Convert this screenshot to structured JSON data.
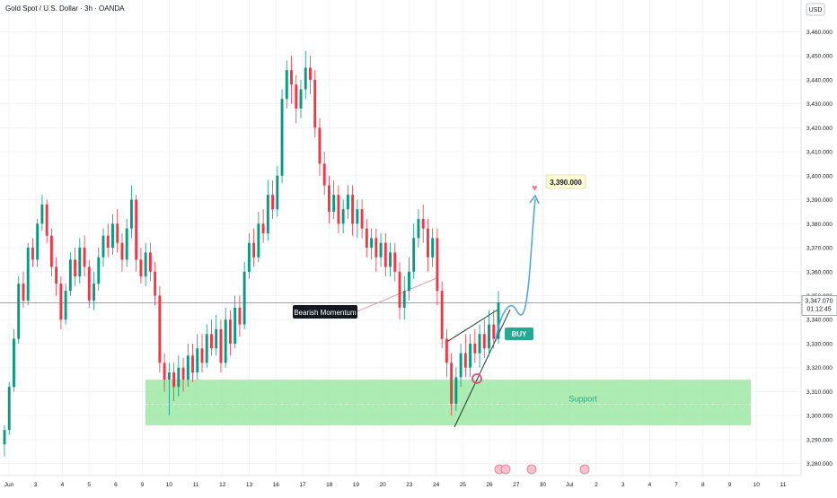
{
  "header": {
    "title": "Gold Spot / U.S. Dollar · 3h · OANDA"
  },
  "scale": {
    "currency": "USD"
  },
  "price": {
    "current": "3,347.070",
    "countdown": "01:12:45"
  },
  "annotations": {
    "bearish": "Bearish Momentum",
    "buy": "BUY",
    "target": "3,390.000",
    "support": "Support"
  },
  "colors": {
    "up": "#089981",
    "down": "#f23645",
    "support": "#9ee8a3",
    "arrow": "#5aa5e6",
    "target_bg": "#fffcd1",
    "buy": "#22ab94"
  },
  "chart_data": {
    "type": "candlestick",
    "yticks": [
      3280,
      3290,
      3300,
      3310,
      3320,
      3330,
      3340,
      3350,
      3360,
      3370,
      3380,
      3390,
      3400,
      3410,
      3420,
      3430,
      3440,
      3450,
      3460
    ],
    "ytick_labels": [
      "3,280.000",
      "3,290.000",
      "3,300.000",
      "3,310.000",
      "3,320.000",
      "3,330.000",
      "3,340.000",
      "3,350.000",
      "3,360.000",
      "3,370.000",
      "3,380.000",
      "3,390.000",
      "3,400.000",
      "3,410.000",
      "3,420.000",
      "3,430.000",
      "3,440.000",
      "3,450.000",
      "3,460.000"
    ],
    "ylim": [
      3278,
      3468
    ],
    "xtick_labels": [
      "Jun",
      "3",
      "4",
      "5",
      "6",
      "9",
      "10",
      "11",
      "12",
      "13",
      "16",
      "17",
      "18",
      "19",
      "20",
      "23",
      "24",
      "25",
      "26",
      "27",
      "30",
      "Jul",
      "2",
      "3",
      "4",
      "7",
      "8",
      "9",
      "10",
      "11"
    ],
    "support_zone": [
      3296,
      3315
    ],
    "target": 3390,
    "current": 3347.07,
    "candles": [
      [
        3288,
        3294,
        3296,
        3283
      ],
      [
        3294,
        3312,
        3314,
        3292
      ],
      [
        3312,
        3332,
        3336,
        3310
      ],
      [
        3332,
        3355,
        3358,
        3330
      ],
      [
        3355,
        3348,
        3360,
        3345
      ],
      [
        3348,
        3370,
        3372,
        3346
      ],
      [
        3370,
        3365,
        3374,
        3362
      ],
      [
        3365,
        3380,
        3382,
        3362
      ],
      [
        3380,
        3388,
        3392,
        3377
      ],
      [
        3388,
        3375,
        3390,
        3372
      ],
      [
        3375,
        3362,
        3378,
        3358
      ],
      [
        3362,
        3355,
        3366,
        3350
      ],
      [
        3355,
        3340,
        3358,
        3336
      ],
      [
        3340,
        3352,
        3355,
        3338
      ],
      [
        3352,
        3365,
        3368,
        3350
      ],
      [
        3365,
        3358,
        3370,
        3354
      ],
      [
        3358,
        3370,
        3374,
        3355
      ],
      [
        3370,
        3362,
        3375,
        3358
      ],
      [
        3362,
        3348,
        3365,
        3345
      ],
      [
        3348,
        3355,
        3360,
        3344
      ],
      [
        3355,
        3366,
        3370,
        3352
      ],
      [
        3366,
        3375,
        3378,
        3362
      ],
      [
        3375,
        3370,
        3380,
        3366
      ],
      [
        3370,
        3380,
        3384,
        3367
      ],
      [
        3380,
        3372,
        3386,
        3368
      ],
      [
        3372,
        3365,
        3376,
        3360
      ],
      [
        3365,
        3378,
        3382,
        3362
      ],
      [
        3378,
        3390,
        3396,
        3374
      ],
      [
        3390,
        3365,
        3392,
        3360
      ],
      [
        3365,
        3358,
        3370,
        3355
      ],
      [
        3358,
        3368,
        3372,
        3354
      ],
      [
        3368,
        3360,
        3372,
        3356
      ],
      [
        3360,
        3350,
        3364,
        3346
      ],
      [
        3350,
        3322,
        3354,
        3318
      ],
      [
        3322,
        3315,
        3326,
        3310
      ],
      [
        3315,
        3318,
        3322,
        3300
      ],
      [
        3318,
        3312,
        3322,
        3306
      ],
      [
        3312,
        3320,
        3325,
        3308
      ],
      [
        3320,
        3315,
        3324,
        3310
      ],
      [
        3315,
        3325,
        3330,
        3312
      ],
      [
        3325,
        3318,
        3330,
        3314
      ],
      [
        3318,
        3328,
        3334,
        3315
      ],
      [
        3328,
        3322,
        3334,
        3318
      ],
      [
        3322,
        3334,
        3338,
        3320
      ],
      [
        3334,
        3328,
        3340,
        3325
      ],
      [
        3328,
        3336,
        3342,
        3325
      ],
      [
        3336,
        3322,
        3340,
        3318
      ],
      [
        3322,
        3340,
        3345,
        3320
      ],
      [
        3340,
        3330,
        3344,
        3325
      ],
      [
        3330,
        3345,
        3350,
        3328
      ],
      [
        3345,
        3338,
        3350,
        3333
      ],
      [
        3338,
        3360,
        3364,
        3336
      ],
      [
        3360,
        3372,
        3376,
        3357
      ],
      [
        3372,
        3366,
        3378,
        3362
      ],
      [
        3366,
        3380,
        3385,
        3364
      ],
      [
        3380,
        3376,
        3386,
        3372
      ],
      [
        3376,
        3392,
        3398,
        3373
      ],
      [
        3392,
        3386,
        3398,
        3382
      ],
      [
        3386,
        3400,
        3404,
        3383
      ],
      [
        3400,
        3432,
        3436,
        3397
      ],
      [
        3432,
        3444,
        3448,
        3428
      ],
      [
        3444,
        3438,
        3450,
        3430
      ],
      [
        3438,
        3428,
        3442,
        3422
      ],
      [
        3428,
        3436,
        3440,
        3424
      ],
      [
        3436,
        3445,
        3452,
        3432
      ],
      [
        3445,
        3440,
        3450,
        3434
      ],
      [
        3440,
        3420,
        3444,
        3416
      ],
      [
        3420,
        3405,
        3424,
        3400
      ],
      [
        3405,
        3396,
        3410,
        3392
      ],
      [
        3396,
        3385,
        3400,
        3380
      ],
      [
        3385,
        3392,
        3398,
        3382
      ],
      [
        3392,
        3380,
        3396,
        3376
      ],
      [
        3380,
        3386,
        3390,
        3376
      ],
      [
        3386,
        3392,
        3396,
        3382
      ],
      [
        3392,
        3380,
        3396,
        3375
      ],
      [
        3380,
        3386,
        3390,
        3374
      ],
      [
        3386,
        3378,
        3390,
        3374
      ],
      [
        3378,
        3370,
        3382,
        3366
      ],
      [
        3370,
        3374,
        3378,
        3365
      ],
      [
        3374,
        3366,
        3378,
        3360
      ],
      [
        3366,
        3372,
        3376,
        3362
      ],
      [
        3372,
        3362,
        3376,
        3358
      ],
      [
        3362,
        3368,
        3372,
        3358
      ],
      [
        3368,
        3360,
        3372,
        3356
      ],
      [
        3360,
        3345,
        3364,
        3340
      ],
      [
        3345,
        3352,
        3358,
        3340
      ],
      [
        3352,
        3360,
        3366,
        3348
      ],
      [
        3360,
        3374,
        3380,
        3357
      ],
      [
        3374,
        3382,
        3386,
        3370
      ],
      [
        3382,
        3378,
        3388,
        3372
      ],
      [
        3378,
        3366,
        3382,
        3360
      ],
      [
        3366,
        3374,
        3378,
        3362
      ],
      [
        3374,
        3352,
        3378,
        3346
      ],
      [
        3352,
        3332,
        3356,
        3328
      ],
      [
        3332,
        3322,
        3336,
        3316
      ],
      [
        3322,
        3305,
        3326,
        3300
      ],
      [
        3305,
        3316,
        3320,
        3302
      ],
      [
        3316,
        3326,
        3330,
        3312
      ],
      [
        3326,
        3320,
        3334,
        3316
      ],
      [
        3320,
        3330,
        3334,
        3316
      ],
      [
        3330,
        3326,
        3336,
        3322
      ],
      [
        3326,
        3334,
        3338,
        3320
      ],
      [
        3334,
        3328,
        3340,
        3324
      ],
      [
        3328,
        3338,
        3344,
        3325
      ],
      [
        3338,
        3332,
        3344,
        3328
      ],
      [
        3332,
        3347,
        3352,
        3330
      ]
    ]
  }
}
